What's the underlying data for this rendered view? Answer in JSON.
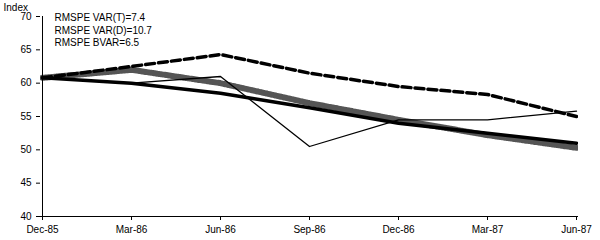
{
  "chart_data": {
    "type": "line",
    "y_label": "Index",
    "annotations": [
      "RMSPE VAR(T)=7.4",
      "RMSPE VAR(D)=10.7",
      "RMSPE BVAR=6.5"
    ],
    "categories": [
      "Dec-85",
      "Mar-86",
      "Jun-86",
      "Sep-86",
      "Dec-86",
      "Mar-87",
      "Jun-87"
    ],
    "series": [
      {
        "color": "#555555",
        "line_style": "hatched",
        "values": [
          60.8,
          62,
          60,
          57,
          54.5,
          52.2,
          50.3
        ]
      },
      {
        "color": "#000000",
        "line_style": "thick",
        "values": [
          60.8,
          60,
          58.5,
          56.3,
          54,
          52.5,
          51
        ]
      },
      {
        "color": "#000000",
        "line_style": "dashed",
        "values": [
          60.8,
          62.5,
          64.3,
          61.5,
          59.5,
          58.3,
          55
        ]
      },
      {
        "color": "#000000",
        "line_style": "thin",
        "values": [
          60.8,
          60,
          61,
          50.5,
          54.5,
          54.5,
          55.8
        ]
      }
    ],
    "ylim": [
      40,
      70
    ],
    "yticks": [
      40,
      45,
      50,
      55,
      60,
      65,
      70
    ],
    "grid": false
  }
}
